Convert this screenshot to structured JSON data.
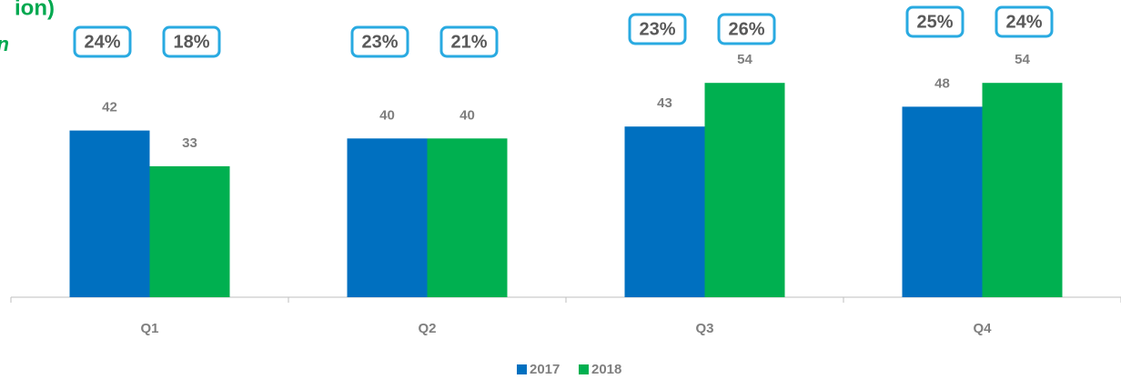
{
  "chart_data": {
    "type": "bar",
    "title": "ion)",
    "subtitle": "n",
    "categories": [
      "Q1",
      "Q2",
      "Q3",
      "Q4"
    ],
    "ylim": [
      0,
      60
    ],
    "series": [
      {
        "name": "2017",
        "color": "#0070c0",
        "values": [
          42,
          40,
          43,
          48
        ],
        "shares": {
          "values": [
            24,
            23,
            23,
            25
          ],
          "value_labels": [
            "24%",
            "23%",
            "23%",
            "25%"
          ]
        }
      },
      {
        "name": "2018",
        "color": "#00b050",
        "values": [
          33,
          40,
          54,
          54
        ],
        "shares": {
          "values": [
            18,
            21,
            26,
            24
          ],
          "value_labels": [
            "18%",
            "21%",
            "26%",
            "24%"
          ]
        }
      }
    ]
  }
}
